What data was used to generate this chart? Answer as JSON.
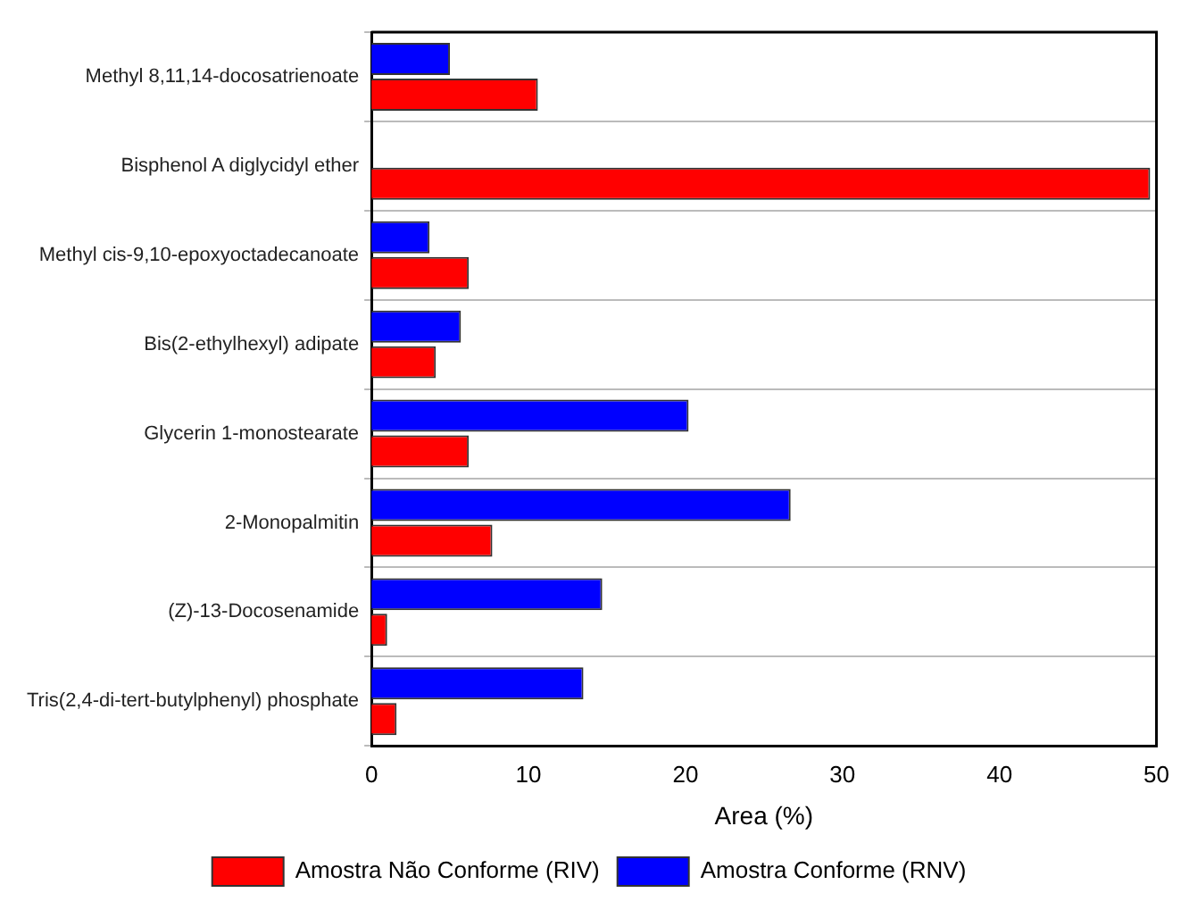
{
  "chart_data": {
    "type": "bar",
    "orientation": "horizontal",
    "xlabel": "Area (%)",
    "categories": [
      "Methyl 8,11,14-docosatrienoate",
      "Bisphenol A diglycidyl ether",
      "Methyl cis-9,10-epoxyoctadecanoate",
      "Bis(2-ethylhexyl) adipate",
      "Glycerin 1-monostearate",
      "2-Monopalmitin",
      "(Z)-13-Docosenamide",
      "Tris(2,4-di-tert-butylphenyl) phosphate"
    ],
    "series": [
      {
        "name": "Amostra Não Conforme (RIV)",
        "color": "#ff0000",
        "values": [
          10.6,
          49.6,
          6.2,
          4.1,
          6.2,
          7.7,
          1.0,
          1.6
        ]
      },
      {
        "name": "Amostra Conforme (RNV)",
        "color": "#0000ff",
        "values": [
          5.0,
          0,
          3.7,
          5.7,
          20.2,
          26.7,
          14.7,
          13.5
        ]
      }
    ],
    "xlim": [
      0,
      50
    ],
    "xticks": [
      0,
      10,
      20,
      30,
      40,
      50
    ],
    "grid": "y",
    "legend": "bottom"
  }
}
